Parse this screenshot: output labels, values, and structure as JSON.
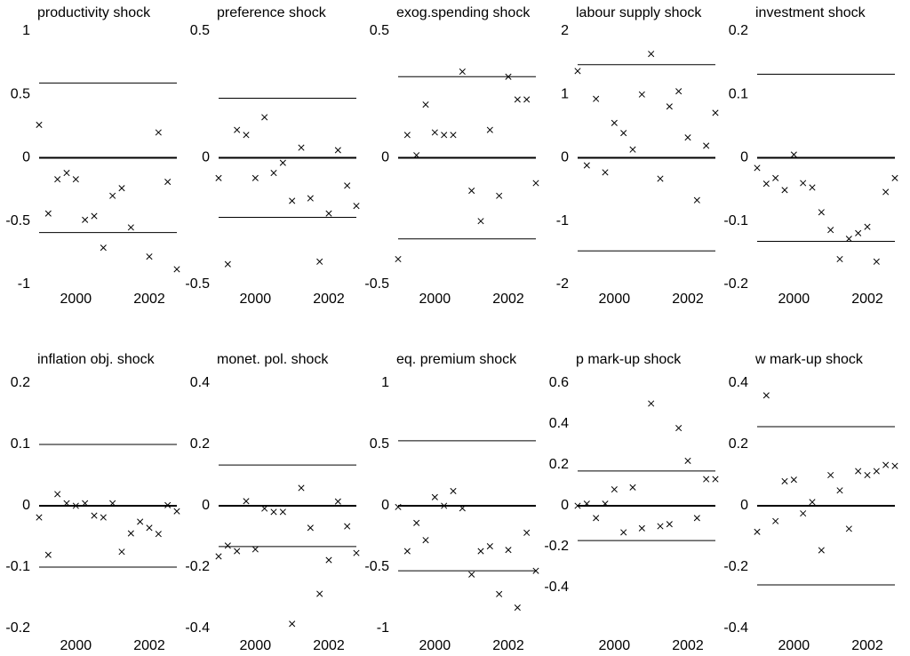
{
  "chart_data": [
    {
      "type": "scatter",
      "title": "productivity shock",
      "x": [
        1999,
        1999.25,
        1999.5,
        1999.75,
        2000,
        2000.25,
        2000.5,
        2000.75,
        2001,
        2001.25,
        2001.5,
        2001.75,
        2002,
        2002.25,
        2002.5,
        2002.75
      ],
      "values": [
        0.26,
        -0.44,
        -0.17,
        -0.12,
        -0.17,
        -0.49,
        -0.46,
        -0.71,
        -0.3,
        -0.24,
        -0.55,
        null,
        -0.78,
        0.2,
        -0.19,
        -0.88
      ],
      "hlines": [
        0.59,
        -0.59
      ],
      "xlim": [
        1999,
        2002.75
      ],
      "xticks": [
        2000,
        2002
      ],
      "ylim": [
        -1,
        1
      ],
      "yticks": [
        -1,
        -0.5,
        0,
        0.5,
        1
      ],
      "color": "#000000"
    },
    {
      "type": "scatter",
      "title": "preference shock",
      "x": [
        1999,
        1999.25,
        1999.5,
        1999.75,
        2000,
        2000.25,
        2000.5,
        2000.75,
        2001,
        2001.25,
        2001.5,
        2001.75,
        2002,
        2002.25,
        2002.5,
        2002.75
      ],
      "values": [
        -0.08,
        -0.42,
        0.11,
        0.09,
        -0.08,
        0.16,
        -0.06,
        -0.02,
        -0.17,
        0.04,
        -0.16,
        -0.41,
        -0.22,
        0.03,
        -0.11,
        -0.19
      ],
      "hlines": [
        0.235,
        -0.235
      ],
      "xlim": [
        1999,
        2002.75
      ],
      "xticks": [
        2000,
        2002
      ],
      "ylim": [
        -0.5,
        0.5
      ],
      "yticks": [
        -0.5,
        0,
        0.5
      ],
      "color": "#000000"
    },
    {
      "type": "scatter",
      "title": "exog.spending shock",
      "x": [
        1999,
        1999.25,
        1999.5,
        1999.75,
        2000,
        2000.25,
        2000.5,
        2000.75,
        2001,
        2001.25,
        2001.5,
        2001.75,
        2002,
        2002.25,
        2002.5,
        2002.75
      ],
      "values": [
        -0.4,
        0.09,
        0.01,
        0.21,
        0.1,
        0.09,
        0.09,
        0.34,
        -0.13,
        -0.25,
        0.11,
        -0.15,
        0.32,
        0.23,
        0.23,
        -0.1
      ],
      "hlines": [
        0.32,
        -0.32
      ],
      "xlim": [
        1999,
        2002.75
      ],
      "xticks": [
        2000,
        2002
      ],
      "ylim": [
        -0.5,
        0.5
      ],
      "yticks": [
        -0.5,
        0,
        0.5
      ],
      "color": "#000000"
    },
    {
      "type": "scatter",
      "title": "labour supply shock",
      "x": [
        1999,
        1999.25,
        1999.5,
        1999.75,
        2000,
        2000.25,
        2000.5,
        2000.75,
        2001,
        2001.25,
        2001.5,
        2001.75,
        2002,
        2002.25,
        2002.5,
        2002.75
      ],
      "values": [
        1.37,
        -0.12,
        0.93,
        -0.23,
        0.55,
        0.39,
        0.13,
        1.0,
        1.64,
        -0.33,
        0.81,
        1.05,
        0.32,
        -0.67,
        0.19,
        0.71
      ],
      "hlines": [
        1.47,
        -1.47
      ],
      "xlim": [
        1999,
        2002.75
      ],
      "xticks": [
        2000,
        2002
      ],
      "ylim": [
        -2,
        2
      ],
      "yticks": [
        -2,
        -1,
        0,
        1,
        2
      ],
      "color": "#000000"
    },
    {
      "type": "scatter",
      "title": "investment shock",
      "x": [
        1999,
        1999.25,
        1999.5,
        1999.75,
        2000,
        2000.25,
        2000.5,
        2000.75,
        2001,
        2001.25,
        2001.5,
        2001.75,
        2002,
        2002.25,
        2002.5,
        2002.75
      ],
      "values": [
        -0.016,
        -0.041,
        -0.032,
        -0.051,
        0.005,
        -0.04,
        -0.047,
        -0.086,
        -0.114,
        -0.16,
        -0.128,
        -0.119,
        -0.109,
        -0.164,
        -0.054,
        -0.032
      ],
      "hlines": [
        0.132,
        -0.132
      ],
      "xlim": [
        1999,
        2002.75
      ],
      "xticks": [
        2000,
        2002
      ],
      "ylim": [
        -0.2,
        0.2
      ],
      "yticks": [
        -0.2,
        -0.1,
        0,
        0.1,
        0.2
      ],
      "color": "#000000"
    },
    {
      "type": "scatter",
      "title": "inflation obj. shock",
      "x": [
        1999,
        1999.25,
        1999.5,
        1999.75,
        2000,
        2000.25,
        2000.5,
        2000.75,
        2001,
        2001.25,
        2001.5,
        2001.75,
        2002,
        2002.25,
        2002.5,
        2002.75
      ],
      "values": [
        -0.019,
        -0.08,
        0.019,
        0.004,
        0,
        0.004,
        -0.016,
        -0.019,
        0.004,
        -0.075,
        -0.045,
        -0.026,
        -0.036,
        -0.046,
        0.001,
        -0.009
      ],
      "hlines": [
        0.1,
        -0.1
      ],
      "xlim": [
        1999,
        2002.75
      ],
      "xticks": [
        2000,
        2002
      ],
      "ylim": [
        -0.2,
        0.2
      ],
      "yticks": [
        -0.2,
        -0.1,
        0,
        0.1,
        0.2
      ],
      "color": "#000000"
    },
    {
      "type": "scatter",
      "title": "monet. pol. shock",
      "x": [
        1999,
        1999.25,
        1999.5,
        1999.75,
        2000,
        2000.25,
        2000.5,
        2000.75,
        2001,
        2001.25,
        2001.5,
        2001.75,
        2002,
        2002.25,
        2002.5,
        2002.75
      ],
      "values": [
        -0.165,
        -0.13,
        -0.148,
        0.015,
        -0.142,
        -0.009,
        -0.02,
        -0.02,
        -0.385,
        0.058,
        -0.072,
        -0.287,
        -0.177,
        0.014,
        -0.067,
        -0.154
      ],
      "hlines": [
        0.133,
        -0.133
      ],
      "xlim": [
        1999,
        2002.75
      ],
      "xticks": [
        2000,
        2002
      ],
      "ylim": [
        -0.4,
        0.4
      ],
      "yticks": [
        -0.4,
        -0.2,
        0,
        0.2,
        0.4
      ],
      "color": "#000000"
    },
    {
      "type": "scatter",
      "title": "eq. premium shock",
      "x": [
        1999,
        1999.25,
        1999.5,
        1999.75,
        2000,
        2000.25,
        2000.5,
        2000.75,
        2001,
        2001.25,
        2001.5,
        2001.75,
        2002,
        2002.25,
        2002.5,
        2002.75
      ],
      "values": [
        -0.01,
        -0.37,
        -0.14,
        -0.28,
        0.07,
        0,
        0.12,
        -0.02,
        -0.56,
        -0.37,
        -0.33,
        -0.72,
        -0.36,
        -0.83,
        -0.22,
        -0.53
      ],
      "hlines": [
        0.53,
        -0.53
      ],
      "xlim": [
        1999,
        2002.75
      ],
      "xticks": [
        2000,
        2002
      ],
      "ylim": [
        -1,
        1
      ],
      "yticks": [
        -1,
        -0.5,
        0,
        0.5,
        1
      ],
      "color": "#000000"
    },
    {
      "type": "scatter",
      "title": "p mark-up shock",
      "x": [
        1999,
        1999.25,
        1999.5,
        1999.75,
        2000,
        2000.25,
        2000.5,
        2000.75,
        2001,
        2001.25,
        2001.5,
        2001.75,
        2002,
        2002.25,
        2002.5,
        2002.75
      ],
      "values": [
        0,
        0.01,
        -0.06,
        0.01,
        0.08,
        -0.13,
        0.09,
        -0.11,
        0.5,
        -0.1,
        -0.09,
        0.38,
        0.22,
        -0.06,
        0.13,
        0.13
      ],
      "hlines": [
        0.17,
        -0.17
      ],
      "xlim": [
        1999,
        2002.75
      ],
      "xticks": [
        2000,
        2002
      ],
      "ylim": [
        -0.6,
        0.6
      ],
      "yticks": [
        -0.4,
        -0.2,
        0,
        0.2,
        0.4,
        0.6
      ],
      "color": "#000000"
    },
    {
      "type": "scatter",
      "title": "w mark-up shock",
      "x": [
        1999,
        1999.25,
        1999.5,
        1999.75,
        2000,
        2000.25,
        2000.5,
        2000.75,
        2001,
        2001.25,
        2001.5,
        2001.75,
        2002,
        2002.25,
        2002.5,
        2002.75
      ],
      "values": [
        -0.085,
        0.36,
        -0.05,
        0.08,
        0.085,
        -0.025,
        0.012,
        -0.145,
        0.1,
        0.05,
        -0.075,
        0.113,
        0.1,
        0.113,
        0.133,
        0.13
      ],
      "hlines": [
        0.258,
        -0.258
      ],
      "xlim": [
        1999,
        2002.75
      ],
      "xticks": [
        2000,
        2002
      ],
      "ylim": [
        -0.4,
        0.4
      ],
      "yticks": [
        -0.4,
        -0.2,
        0,
        0.2,
        0.4
      ],
      "color": "#000000"
    }
  ]
}
